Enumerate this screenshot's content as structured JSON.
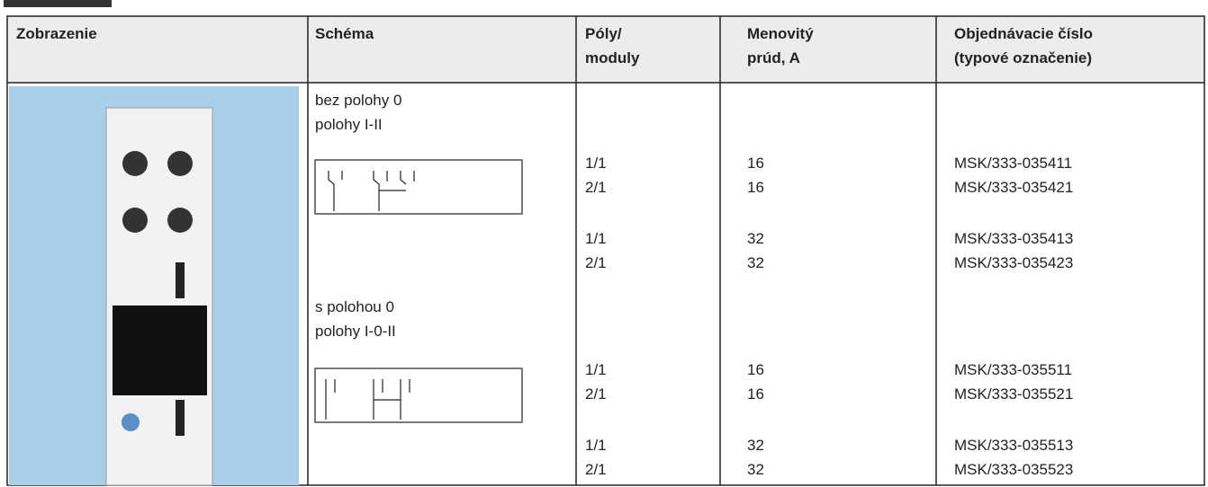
{
  "table": {
    "headers": [
      [
        "Zobrazenie"
      ],
      [
        "Schéma"
      ],
      [
        "Póly/",
        "moduly"
      ],
      [
        "Menovitý",
        "prúd, A"
      ],
      [
        "Objednávacie číslo",
        "(typové označenie)"
      ]
    ],
    "sections": [
      {
        "title": [
          "bez polohy 0",
          "polohy I-II"
        ],
        "rows": [
          [
            "1/1",
            "16",
            "MSK/333-035411"
          ],
          [
            "2/1",
            "16",
            "MSK/333-035421"
          ],
          [
            "1/1",
            "32",
            "MSK/333-035413"
          ],
          [
            "2/1",
            "32",
            "MSK/333-035423"
          ]
        ]
      },
      {
        "title": [
          "s polohou 0",
          "polohy I-0-II"
        ],
        "rows": [
          [
            "1/1",
            "16",
            "MSK/333-035511"
          ],
          [
            "2/1",
            "16",
            "MSK/333-035521"
          ],
          [
            "1/1",
            "32",
            "MSK/333-035513"
          ],
          [
            "2/1",
            "32",
            "MSK/333-035523"
          ]
        ]
      }
    ]
  }
}
